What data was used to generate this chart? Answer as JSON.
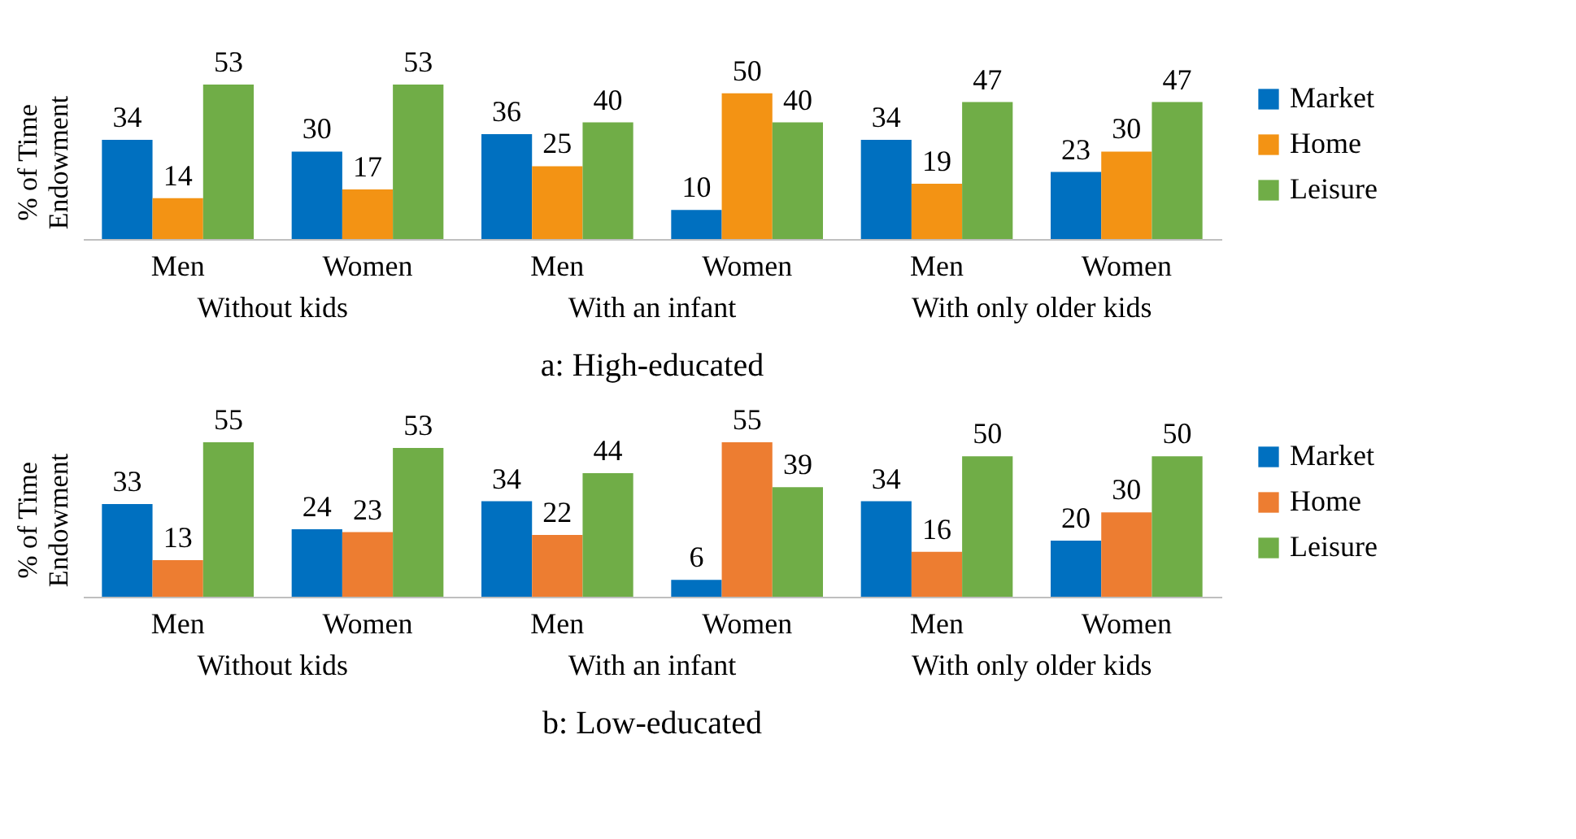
{
  "chart_data": [
    {
      "type": "bar",
      "title": "a: High-educated",
      "ylabel": "% of Time Endowment",
      "categories": [
        "Men",
        "Women",
        "Men",
        "Women",
        "Men",
        "Women"
      ],
      "annotations": [
        "Without kids",
        "With an infant",
        "With only older kids"
      ],
      "data_labels": true,
      "legend": "right",
      "tick_labels": "x",
      "series": [
        {
          "name": "Market",
          "color": "#0070c0",
          "values": [
            34,
            30,
            36,
            10,
            34,
            23
          ]
        },
        {
          "name": "Home",
          "color": "#f39314",
          "values": [
            14,
            17,
            25,
            50,
            19,
            30
          ]
        },
        {
          "name": "Leisure",
          "color": "#70ad47",
          "values": [
            53,
            53,
            40,
            40,
            47,
            47
          ]
        }
      ]
    },
    {
      "type": "bar",
      "title": "b: Low-educated",
      "ylabel": "% of Time Endowment",
      "categories": [
        "Men",
        "Women",
        "Men",
        "Women",
        "Men",
        "Women"
      ],
      "annotations": [
        "Without kids",
        "With an infant",
        "With only older kids"
      ],
      "data_labels": true,
      "legend": "right",
      "tick_labels": "x",
      "series": [
        {
          "name": "Market",
          "color": "#0070c0",
          "values": [
            33,
            24,
            34,
            6,
            34,
            20
          ]
        },
        {
          "name": "Home",
          "color": "#ed7d31",
          "values": [
            13,
            23,
            22,
            55,
            16,
            30
          ]
        },
        {
          "name": "Leisure",
          "color": "#70ad47",
          "values": [
            55,
            53,
            44,
            39,
            50,
            50
          ]
        }
      ]
    }
  ]
}
